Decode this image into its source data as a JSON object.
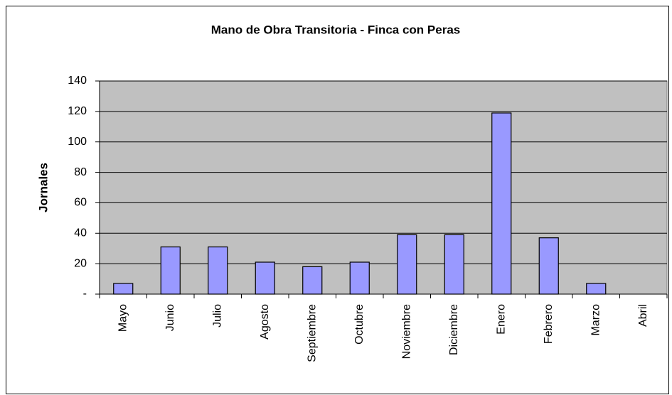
{
  "chart_data": {
    "type": "bar",
    "title": "Mano de Obra Transitoria - Finca con Peras",
    "y_label": "Jornales",
    "categories": [
      "Mayo",
      "Junio",
      "Julio",
      "Agosto",
      "Septiembre",
      "Octubre",
      "Noviembre",
      "Diciembre",
      "Enero",
      "Febrero",
      "Marzo",
      "Abril"
    ],
    "values": [
      7,
      31,
      31,
      21,
      18,
      21,
      39,
      39,
      119,
      37,
      7,
      0
    ],
    "color": "#9999ff",
    "ylim": [
      0,
      140
    ],
    "yticks": [
      {
        "value": 0,
        "label": "-"
      },
      20,
      40,
      60,
      80,
      100,
      120,
      140
    ],
    "grid": true
  }
}
